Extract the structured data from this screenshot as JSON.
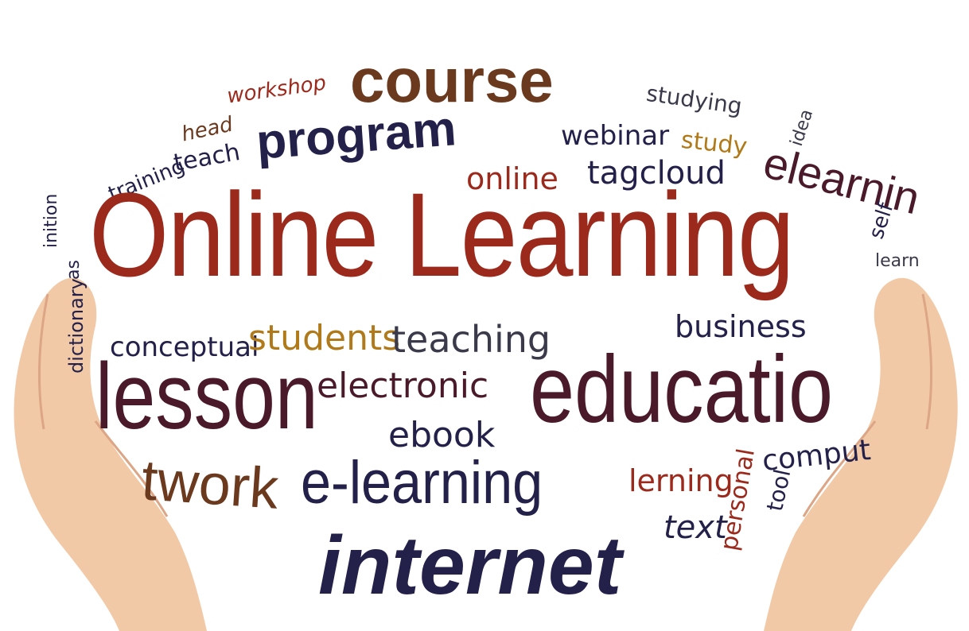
{
  "colors": {
    "red": "#9b2a1c",
    "brown": "#6b3a1e",
    "navy": "#23204a",
    "gold": "#b07a1a",
    "maroon": "#4a1a2a",
    "gray": "#3a3a4a",
    "skin": "#f2c9a6",
    "skin_shade": "#dca585"
  },
  "words": {
    "online_learning": "Online Learning",
    "course": "course",
    "workshop": "workshop",
    "studying": "studying",
    "program": "program",
    "webinar": "webinar",
    "study": "study",
    "head": "head",
    "teach": "teach",
    "training": "training",
    "online": "online",
    "tagcloud": "tagcloud",
    "elearning": "elearnin",
    "idea": "idea",
    "self": "self",
    "learn": "learn",
    "definition": "inition",
    "dictionary": "dictionary",
    "as": "as",
    "conceptual": "conceptual",
    "students": "students",
    "teaching": "teaching",
    "business": "business",
    "lesson": "lesson",
    "electronic": "electronic",
    "education": "educatio",
    "ebook": "ebook",
    "network": "twork",
    "e_learning": "e-learning",
    "lerning": "lerning",
    "personal": "personal",
    "computer": "comput",
    "tool": "tool",
    "text": "text",
    "internet": "internet"
  }
}
